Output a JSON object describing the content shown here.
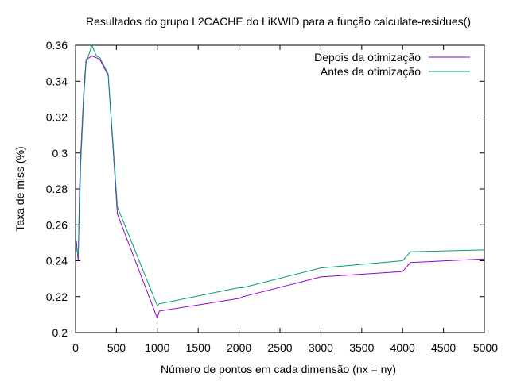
{
  "chart_data": {
    "type": "line",
    "title": "Resultados do grupo L2CACHE do LiKWID para a função calculate-residues()",
    "xlabel": "Número de pontos em cada dimensão (nx = ny)",
    "ylabel": "Taxa de miss (%)",
    "xlim": [
      0,
      5000
    ],
    "ylim": [
      0.2,
      0.36
    ],
    "xticks": [
      0,
      500,
      1000,
      1500,
      2000,
      2500,
      3000,
      3500,
      4000,
      4500,
      5000
    ],
    "yticks": [
      0.2,
      0.22,
      0.24,
      0.26,
      0.28,
      0.3,
      0.32,
      0.34,
      0.36
    ],
    "xtick_labels": [
      "0",
      "500",
      "1000",
      "1500",
      "2000",
      "2500",
      "3000",
      "3500",
      "4000",
      "4500",
      "5000"
    ],
    "ytick_labels": [
      "0.2",
      "0.22",
      "0.24",
      "0.26",
      "0.28",
      "0.3",
      "0.32",
      "0.34",
      "0.36"
    ],
    "grid": false,
    "legend_position": "top-right",
    "series": [
      {
        "name": "Depois da otimização",
        "color": "#9400d3",
        "x": [
          10,
          32,
          50,
          64,
          100,
          128,
          200,
          256,
          300,
          400,
          512,
          1000,
          1024,
          2000,
          2048,
          3000,
          4000,
          4096,
          5000
        ],
        "y": [
          0.251,
          0.24,
          0.282,
          0.3,
          0.334,
          0.352,
          0.354,
          0.353,
          0.352,
          0.343,
          0.266,
          0.208,
          0.212,
          0.219,
          0.22,
          0.231,
          0.234,
          0.239,
          0.241
        ]
      },
      {
        "name": "Antes da otimização",
        "color": "#009e73",
        "x": [
          10,
          32,
          50,
          64,
          100,
          128,
          200,
          256,
          300,
          400,
          512,
          1000,
          1024,
          2000,
          2048,
          3000,
          4000,
          4096,
          5000
        ],
        "y": [
          0.247,
          0.243,
          0.27,
          0.295,
          0.33,
          0.35,
          0.36,
          0.354,
          0.353,
          0.344,
          0.27,
          0.215,
          0.216,
          0.225,
          0.225,
          0.236,
          0.24,
          0.245,
          0.246
        ]
      }
    ]
  }
}
